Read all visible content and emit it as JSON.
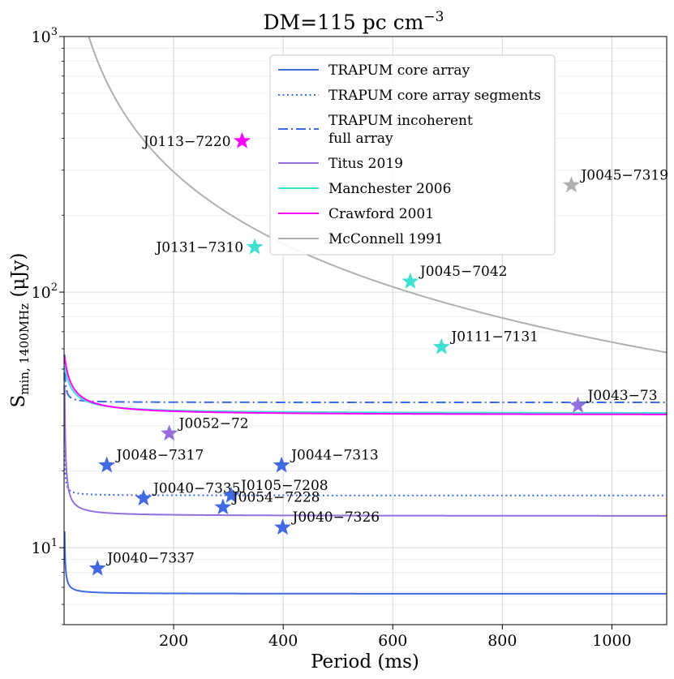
{
  "chart_data": {
    "type": "line",
    "title": "DM=115 pc cm",
    "title_superscript": "−3",
    "xlabel": "Period (ms)",
    "ylabel_main": "S",
    "ylabel_sub": "min, 1400MHz",
    "ylabel_tail": "(μJy)",
    "xlim": [
      0,
      1100
    ],
    "ylim": [
      5,
      1000
    ],
    "yscale": "log",
    "grid": true,
    "xticks": [
      {
        "value": 200,
        "label": "200"
      },
      {
        "value": 400,
        "label": "400"
      },
      {
        "value": 600,
        "label": "600"
      },
      {
        "value": 800,
        "label": "800"
      },
      {
        "value": 1000,
        "label": "1000"
      }
    ],
    "yticks_major": [
      {
        "value": 10,
        "base": "10",
        "exp": "1"
      },
      {
        "value": 100,
        "base": "10",
        "exp": "2"
      },
      {
        "value": 1000,
        "base": "10",
        "exp": "3"
      }
    ],
    "legend_position": "top-center",
    "series": [
      {
        "name": "TRAPUM core array",
        "legend_lines": [
          "TRAPUM core array"
        ],
        "color": "#4169e1",
        "style": "solid",
        "S_inf": 6.6,
        "A": 5,
        "c": 0
      },
      {
        "name": "TRAPUM core array segments",
        "legend_lines": [
          "TRAPUM core array segments"
        ],
        "color": "#4169e1",
        "style": "dotted",
        "S_inf": 16.0,
        "A": 8,
        "c": 0
      },
      {
        "name": "TRAPUM incoherent full array",
        "legend_lines": [
          "TRAPUM incoherent",
          "full array"
        ],
        "color": "#4169e1",
        "style": "dashdot",
        "S_inf": 37.0,
        "A": 20,
        "c": 0
      },
      {
        "name": "Titus 2019",
        "legend_lines": [
          "Titus 2019"
        ],
        "color": "#9370db",
        "style": "solid",
        "S_inf": 13.3,
        "A": 30,
        "c": 0
      },
      {
        "name": "Manchester 2006",
        "legend_lines": [
          "Manchester 2006"
        ],
        "color": "#40e0d0",
        "style": "solid",
        "S_inf": 33.5,
        "A": 200,
        "c": 10
      },
      {
        "name": "Crawford 2001",
        "legend_lines": [
          "Crawford 2001"
        ],
        "color": "#ff00ff",
        "style": "solid",
        "S_inf": 33.0,
        "A": 250,
        "c": 10
      },
      {
        "name": "McConnell 1991",
        "legend_lines": [
          "McConnell 1991"
        ],
        "color": "#b0b0b0",
        "style": "solid",
        "S_inf": 0,
        "A": 65000,
        "c": 20,
        "mcconnell": true
      }
    ],
    "pulsars": [
      {
        "name": "J0113−7220",
        "period": 325,
        "flux": 390,
        "color": "#ff00ff",
        "label_side": "left"
      },
      {
        "name": "J0045−7319",
        "period": 926,
        "flux": 262,
        "color": "#b0b0b0",
        "label_side": "right"
      },
      {
        "name": "J0131−7310",
        "period": 348,
        "flux": 150,
        "color": "#40e0d0",
        "label_side": "left"
      },
      {
        "name": "J0045−7042",
        "period": 632,
        "flux": 110,
        "color": "#40e0d0",
        "label_side": "right"
      },
      {
        "name": "J0111−7131",
        "period": 689,
        "flux": 61,
        "color": "#40e0d0",
        "label_side": "right"
      },
      {
        "name": "J0043−73",
        "period": 938,
        "flux": 36,
        "color": "#9370db",
        "label_side": "right"
      },
      {
        "name": "J0052−72",
        "period": 192,
        "flux": 28,
        "color": "#9370db",
        "label_side": "right"
      },
      {
        "name": "J0048−7317",
        "period": 78,
        "flux": 21,
        "color": "#4169e1",
        "label_side": "right"
      },
      {
        "name": "J0044−7313",
        "period": 397,
        "flux": 21,
        "color": "#4169e1",
        "label_side": "right"
      },
      {
        "name": "J0040−7335",
        "period": 145,
        "flux": 15.6,
        "color": "#4169e1",
        "label_side": "right"
      },
      {
        "name": "J0105−7208",
        "period": 305,
        "flux": 16,
        "color": "#4169e1",
        "label_side": "right"
      },
      {
        "name": "J0054−7228",
        "period": 290,
        "flux": 14.4,
        "color": "#4169e1",
        "label_side": "right"
      },
      {
        "name": "J0040−7326",
        "period": 399,
        "flux": 12,
        "color": "#4169e1",
        "label_side": "right"
      },
      {
        "name": "J0040−7337",
        "period": 61,
        "flux": 8.3,
        "color": "#4169e1",
        "label_side": "right"
      }
    ]
  }
}
